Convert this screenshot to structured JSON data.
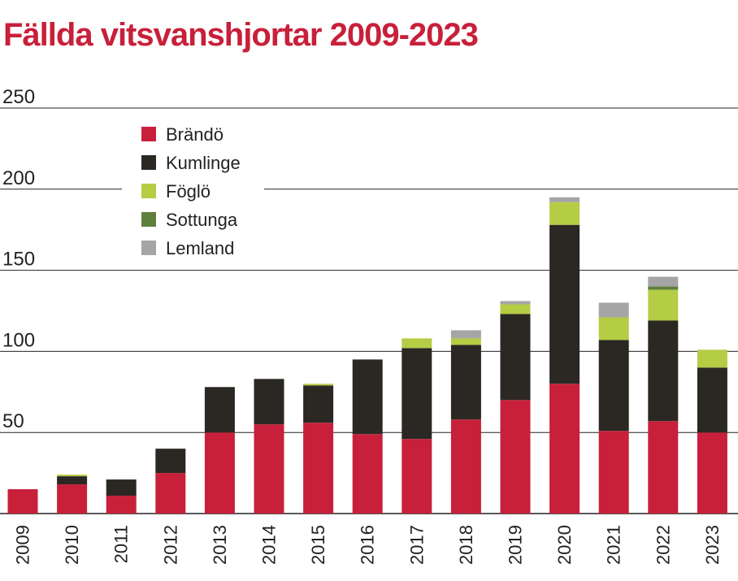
{
  "colors": {
    "title": "#c8203a",
    "axis": "#222222",
    "gridline": "#222222"
  },
  "chart_data": {
    "type": "bar",
    "stacked": true,
    "title": "Fällda vitsvanshjortar 2009-2023",
    "xlabel": "",
    "ylabel": "",
    "ylim": [
      0,
      250
    ],
    "yticks": [
      50,
      100,
      150,
      200,
      250
    ],
    "grid": true,
    "legend_position": "top-left",
    "categories": [
      "2009",
      "2010",
      "2011",
      "2012",
      "2013",
      "2014",
      "2015",
      "2016",
      "2017",
      "2018",
      "2019",
      "2020",
      "2021",
      "2022",
      "2023"
    ],
    "series": [
      {
        "name": "Brändö",
        "color": "#c8203a",
        "values": [
          15,
          18,
          11,
          25,
          50,
          55,
          56,
          49,
          46,
          58,
          70,
          80,
          51,
          57,
          50
        ]
      },
      {
        "name": "Kumlinge",
        "color": "#2b2824",
        "values": [
          0,
          5,
          10,
          15,
          28,
          28,
          23,
          46,
          56,
          46,
          53,
          98,
          56,
          62,
          40
        ]
      },
      {
        "name": "Föglö",
        "color": "#b5cc45",
        "values": [
          0,
          1,
          0,
          0,
          0,
          0,
          1,
          0,
          6,
          4,
          6,
          14,
          14,
          19,
          11
        ]
      },
      {
        "name": "Sottunga",
        "color": "#5f7f3c",
        "values": [
          0,
          0,
          0,
          0,
          0,
          0,
          0,
          0,
          0,
          0,
          0,
          0,
          0,
          2,
          0
        ]
      },
      {
        "name": "Lemland",
        "color": "#a5a5a5",
        "values": [
          0,
          0,
          0,
          0,
          0,
          0,
          0,
          0,
          0,
          5,
          2,
          3,
          9,
          6,
          0
        ]
      }
    ]
  }
}
